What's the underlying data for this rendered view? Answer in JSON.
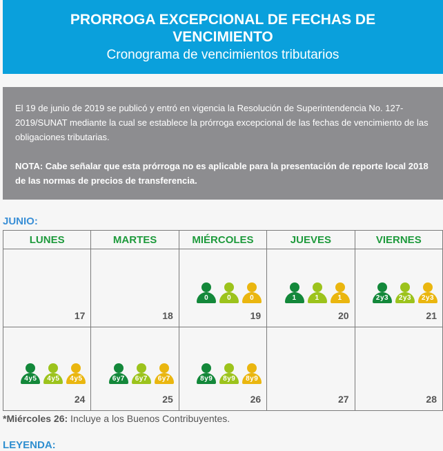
{
  "header": {
    "title": "PRORROGA EXCEPCIONAL DE FECHAS DE VENCIMIENTO",
    "subtitle": "Cronograma de vencimientos tributarios"
  },
  "info": {
    "paragraph": "El 19 de junio de 2019 se publicó y entró en vigencia la Resolución de Superintendencia No. 127-2019/SUNAT mediante la cual se establece la prórroga excepcional de las fechas de vencimiento de las obligaciones tributarias.",
    "nota": "NOTA: Cabe señalar que esta prórroga no es aplicable para la presentación de reporte local 2018 de las normas de precios de transferencia."
  },
  "calendar": {
    "month": "JUNIO:",
    "headers": [
      "LUNES",
      "MARTES",
      "MIÉRCOLES",
      "JUEVES",
      "VIERNES"
    ],
    "weeks": [
      [
        {
          "day": "17",
          "digits": ""
        },
        {
          "day": "18",
          "digits": ""
        },
        {
          "day": "19",
          "digits": "0"
        },
        {
          "day": "20",
          "digits": "1"
        },
        {
          "day": "21",
          "digits": "2y3"
        }
      ],
      [
        {
          "day": "24",
          "digits": "4y5"
        },
        {
          "day": "25",
          "digits": "6y7"
        },
        {
          "day": "26",
          "digits": "8y9"
        },
        {
          "day": "27",
          "digits": ""
        },
        {
          "day": "28",
          "digits": ""
        }
      ]
    ],
    "icon_colors": [
      "#13883a",
      "#9cc31c",
      "#eab60f"
    ]
  },
  "note": {
    "bold": "*Miércoles 26:",
    "text": " Incluye a los Buenos Contribuyentes."
  },
  "legend": {
    "title": "LEYENDA:"
  }
}
